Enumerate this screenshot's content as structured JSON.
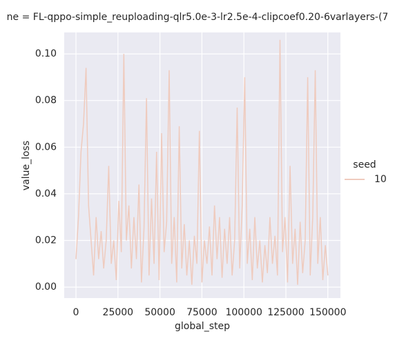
{
  "chart_data": {
    "type": "line",
    "title": "ne = FL-qppo-simple_reuploading-qlr5.0e-3-lr2.5e-4-clipcoef0.20-6varlayers-(7",
    "xlabel": "global_step",
    "ylabel": "value_loss",
    "legend_title": "seed",
    "x": [
      0,
      1500,
      3000,
      4500,
      6000,
      7500,
      9000,
      10500,
      12000,
      13500,
      15000,
      16500,
      18000,
      19500,
      21000,
      22500,
      24000,
      25500,
      27000,
      28500,
      30000,
      31500,
      33000,
      34500,
      36000,
      37500,
      39000,
      40500,
      42000,
      43500,
      45000,
      46500,
      48000,
      49500,
      51000,
      52500,
      54000,
      55500,
      57000,
      58500,
      60000,
      61500,
      63000,
      64500,
      66000,
      67500,
      69000,
      70500,
      72000,
      73500,
      75000,
      76500,
      78000,
      79500,
      81000,
      82500,
      84000,
      85500,
      87000,
      88500,
      90000,
      91500,
      93000,
      94500,
      96000,
      97500,
      99000,
      100500,
      102000,
      103500,
      105000,
      106500,
      108000,
      109500,
      111000,
      112500,
      114000,
      115500,
      117000,
      118500,
      120000,
      121500,
      123000,
      124500,
      126000,
      127500,
      129000,
      130500,
      132000,
      133500,
      135000,
      136500,
      138000,
      139500,
      141000,
      142500,
      144000,
      145500,
      147000,
      148500,
      150000
    ],
    "series": [
      {
        "name": "10",
        "color": "#efcbbe",
        "values": [
          0.012,
          0.03,
          0.058,
          0.07,
          0.094,
          0.035,
          0.02,
          0.005,
          0.03,
          0.012,
          0.024,
          0.008,
          0.02,
          0.052,
          0.01,
          0.02,
          0.003,
          0.037,
          0.015,
          0.1,
          0.02,
          0.035,
          0.008,
          0.03,
          0.012,
          0.044,
          0.002,
          0.025,
          0.081,
          0.005,
          0.038,
          0.01,
          0.058,
          0.003,
          0.066,
          0.015,
          0.028,
          0.093,
          0.01,
          0.03,
          0.002,
          0.069,
          0.008,
          0.027,
          0.005,
          0.02,
          0.001,
          0.022,
          0.01,
          0.067,
          0.002,
          0.02,
          0.01,
          0.026,
          0.005,
          0.035,
          0.012,
          0.03,
          0.004,
          0.025,
          0.01,
          0.03,
          0.005,
          0.02,
          0.077,
          0.008,
          0.035,
          0.09,
          0.01,
          0.025,
          0.003,
          0.03,
          0.008,
          0.02,
          0.002,
          0.018,
          0.006,
          0.03,
          0.01,
          0.022,
          0.005,
          0.106,
          0.015,
          0.03,
          0.002,
          0.052,
          0.01,
          0.025,
          0.001,
          0.028,
          0.006,
          0.02,
          0.09,
          0.005,
          0.03,
          0.093,
          0.01,
          0.03,
          0.003,
          0.018,
          0.005
        ]
      }
    ],
    "xlim": [
      -7000,
      157500
    ],
    "ylim": [
      -0.0047,
      0.1092
    ],
    "xticks": [
      0,
      25000,
      50000,
      75000,
      100000,
      125000,
      150000
    ],
    "yticks": [
      {
        "value": 0,
        "label": "0.00"
      },
      {
        "value": 0.02,
        "label": "0.02"
      },
      {
        "value": 0.04,
        "label": "0.04"
      },
      {
        "value": 0.06,
        "label": "0.06"
      },
      {
        "value": 0.08,
        "label": "0.08"
      },
      {
        "value": 0.1,
        "label": "0.10"
      }
    ],
    "grid": true
  }
}
